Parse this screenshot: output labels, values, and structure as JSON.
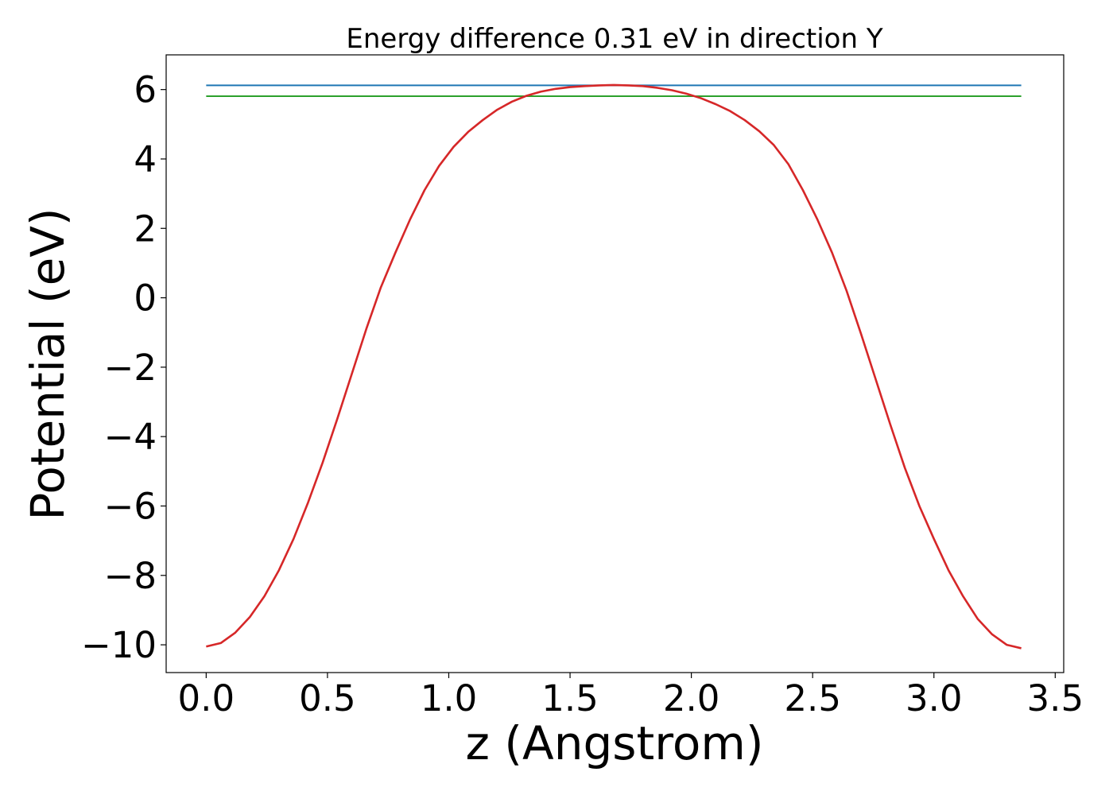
{
  "chart_data": {
    "type": "line",
    "title": "Energy difference 0.31 eV in direction Y",
    "xlabel": "z (Angstrom)",
    "ylabel": "Potential (eV)",
    "xlim": [
      -0.165,
      3.535
    ],
    "ylim": [
      -10.8,
      7.0
    ],
    "xticks": [
      0.0,
      0.5,
      1.0,
      1.5,
      2.0,
      2.5,
      3.0,
      3.5
    ],
    "xtick_labels": [
      "0.0",
      "0.5",
      "1.0",
      "1.5",
      "2.0",
      "2.5",
      "3.0",
      "3.5"
    ],
    "yticks": [
      6,
      4,
      2,
      0,
      -2,
      -4,
      -6,
      -8,
      -10
    ],
    "ytick_labels": [
      "6",
      "4",
      "2",
      "0",
      "−2",
      "−4",
      "−6",
      "−8",
      "−10"
    ],
    "grid": false,
    "series": [
      {
        "color": "#1f77b4",
        "x": [
          0.0,
          3.36
        ],
        "y": [
          6.12,
          6.12
        ]
      },
      {
        "color": "#2ca02c",
        "x": [
          0.0,
          3.36
        ],
        "y": [
          5.81,
          5.81
        ]
      },
      {
        "color": "#d62728",
        "x": [
          0.0,
          0.06,
          0.12,
          0.18,
          0.24,
          0.3,
          0.36,
          0.42,
          0.48,
          0.54,
          0.6,
          0.66,
          0.72,
          0.78,
          0.84,
          0.9,
          0.96,
          1.02,
          1.08,
          1.14,
          1.2,
          1.26,
          1.32,
          1.38,
          1.44,
          1.5,
          1.56,
          1.62,
          1.68,
          1.74,
          1.8,
          1.86,
          1.92,
          1.98,
          2.04,
          2.1,
          2.16,
          2.22,
          2.28,
          2.34,
          2.4,
          2.46,
          2.52,
          2.58,
          2.64,
          2.7,
          2.76,
          2.82,
          2.88,
          2.94,
          3.0,
          3.06,
          3.12,
          3.18,
          3.24,
          3.3,
          3.36
        ],
        "y": [
          -10.05,
          -9.95,
          -9.65,
          -9.2,
          -8.6,
          -7.85,
          -6.95,
          -5.9,
          -4.75,
          -3.5,
          -2.2,
          -0.9,
          0.3,
          1.3,
          2.25,
          3.1,
          3.8,
          4.35,
          4.78,
          5.12,
          5.42,
          5.65,
          5.82,
          5.94,
          6.02,
          6.07,
          6.1,
          6.12,
          6.13,
          6.12,
          6.1,
          6.05,
          5.98,
          5.88,
          5.75,
          5.58,
          5.38,
          5.12,
          4.8,
          4.4,
          3.85,
          3.1,
          2.25,
          1.3,
          0.2,
          -1.05,
          -2.35,
          -3.65,
          -4.9,
          -6.0,
          -6.95,
          -7.85,
          -8.6,
          -9.25,
          -9.7,
          -10.0,
          -10.1
        ]
      }
    ]
  }
}
